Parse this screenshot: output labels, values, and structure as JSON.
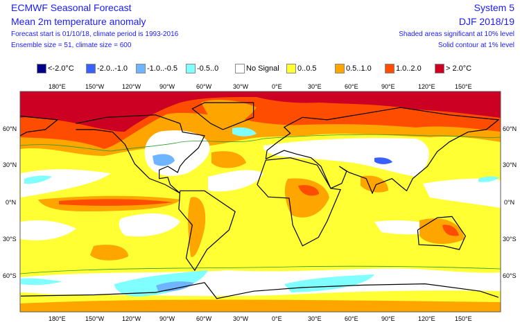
{
  "header": {
    "title": "ECMWF Seasonal Forecast",
    "subtitle": "Mean 2m temperature anomaly",
    "forecast_info": "Forecast start is 01/10/18, climate period is 1993-2016",
    "ensemble_info": "Ensemble size = 51, climate size = 600",
    "system": "System 5",
    "season": "DJF 2018/19",
    "significance_note": "Shaded areas significant at 10% level",
    "contour_note": "Solid contour at 1% level"
  },
  "legend": [
    {
      "label": "<-2.0°C",
      "color": "#00008b"
    },
    {
      "label": "-2.0..-1.0",
      "color": "#3a5fff"
    },
    {
      "label": "-1.0..-0.5",
      "color": "#6fb4ff"
    },
    {
      "label": "-0.5..0",
      "color": "#7fffff"
    },
    {
      "label": "No Signal",
      "color": "#ffffff"
    },
    {
      "label": "0..0.5",
      "color": "#ffff33"
    },
    {
      "label": "0.5..1.0",
      "color": "#ffa500"
    },
    {
      "label": "1.0..2.0",
      "color": "#ff4d00"
    },
    {
      "label": "> 2.0°C",
      "color": "#cc0022"
    }
  ],
  "axes": {
    "lon_labels": [
      "180°E",
      "150°W",
      "120°W",
      "90°W",
      "60°W",
      "30°W",
      "0°E",
      "30°E",
      "60°E",
      "90°E",
      "120°E",
      "150°E"
    ],
    "lat_labels": [
      "60°N",
      "30°N",
      "0°N",
      "30°S",
      "60°S"
    ]
  }
}
